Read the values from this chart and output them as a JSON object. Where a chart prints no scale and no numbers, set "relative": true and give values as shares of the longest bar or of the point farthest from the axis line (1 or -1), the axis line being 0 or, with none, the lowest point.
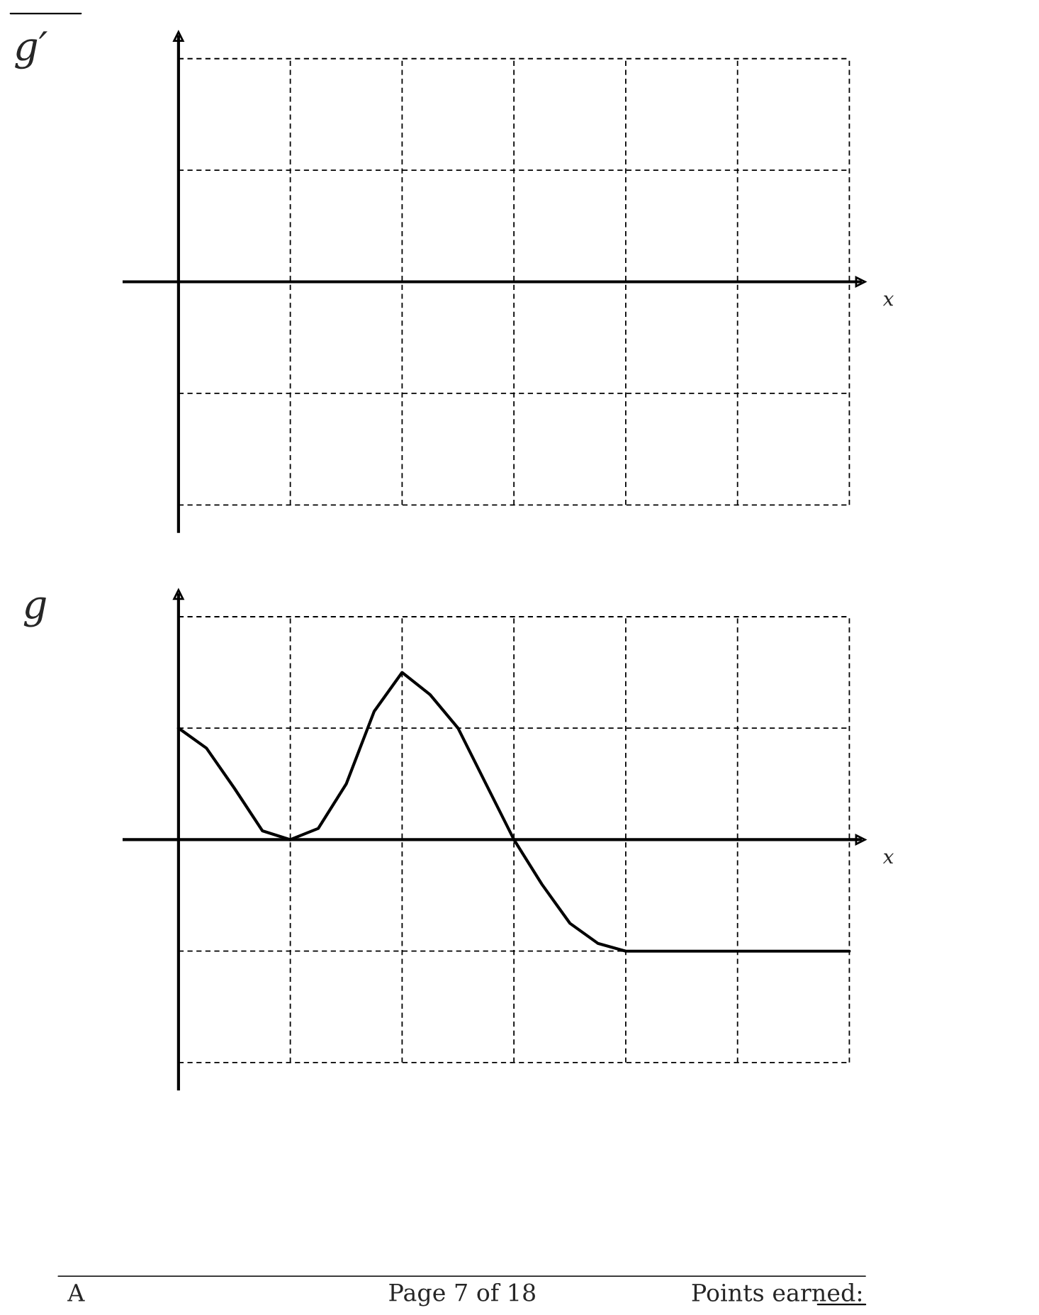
{
  "chart_data": [
    {
      "type": "other",
      "ylabel": "g′",
      "xlabel": "x"
    },
    {
      "type": "line",
      "ylabel": "g",
      "xlabel": "x",
      "relative": true,
      "grid": true,
      "categories": [
        null,
        null,
        null,
        null,
        null,
        null,
        null,
        null,
        null,
        null,
        null,
        null,
        null,
        null,
        null,
        null,
        null,
        null,
        null,
        null,
        null,
        null,
        null,
        null,
        null
      ],
      "series": [
        {
          "color": "#000000",
          "values": [
            0.667,
            0.547,
            0.307,
            0.053,
            0,
            0.067,
            0.333,
            0.767,
            1,
            0.867,
            0.667,
            0.333,
            0,
            -0.267,
            -0.5,
            -0.62,
            -0.667,
            -0.667,
            -0.667,
            -0.667,
            -0.667,
            -0.667,
            -0.667,
            -0.667,
            -0.667
          ]
        }
      ],
      "annotations": [
        "A",
        "Page 7 of 18",
        "Points earned:"
      ]
    }
  ]
}
